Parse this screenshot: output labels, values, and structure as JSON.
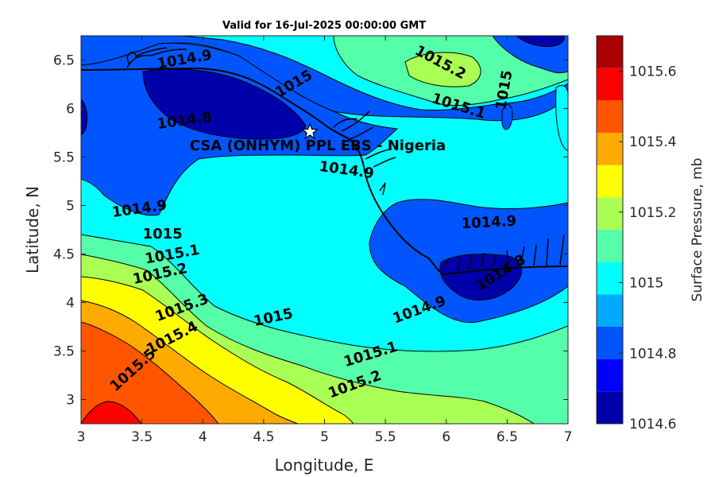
{
  "chart_data": {
    "type": "contour",
    "title": "Valid for 16-Jul-2025 00:00:00 GMT",
    "xlabel": "Longitude, E",
    "ylabel": "Latitude, N",
    "xlim": [
      3,
      7
    ],
    "ylim": [
      2.75,
      6.75
    ],
    "xticks": [
      "3",
      "3.5",
      "4",
      "4.5",
      "5",
      "5.5",
      "6",
      "6.5",
      "7"
    ],
    "yticks": [
      "3",
      "3.5",
      "4",
      "4.5",
      "5",
      "5.5",
      "6",
      "6.5"
    ],
    "colorbar": {
      "label": "Surface Pressure, mb",
      "range": [
        1014.6,
        1015.7
      ],
      "ticks": [
        "1014.6",
        "1014.8",
        "1015",
        "1015.2",
        "1015.4",
        "1015.6"
      ],
      "colors": [
        "#0000aa",
        "#0000ff",
        "#0055ff",
        "#00aaff",
        "#00ffff",
        "#55ffaa",
        "#aaff55",
        "#ffff00",
        "#ffaa00",
        "#ff5500",
        "#ff0000",
        "#aa0000"
      ]
    },
    "contour_labels": [
      {
        "text": "1014.9",
        "lon": 3.85,
        "lat": 6.5,
        "angle": 10
      },
      {
        "text": "1015",
        "lon": 4.75,
        "lat": 6.25,
        "angle": 30
      },
      {
        "text": "1015.2",
        "lon": 5.95,
        "lat": 6.47,
        "angle": -28
      },
      {
        "text": "1015.1",
        "lon": 6.1,
        "lat": 6.02,
        "angle": -17
      },
      {
        "text": "1015",
        "lon": 6.48,
        "lat": 6.19,
        "angle": 80
      },
      {
        "text": "1014.8",
        "lon": 3.85,
        "lat": 5.87,
        "angle": 8
      },
      {
        "text": "1014.9",
        "lon": 5.18,
        "lat": 5.36,
        "angle": -8
      },
      {
        "text": "1014.9",
        "lon": 3.48,
        "lat": 4.96,
        "angle": 8
      },
      {
        "text": "1015",
        "lon": 3.67,
        "lat": 4.7,
        "angle": 0
      },
      {
        "text": "1015.1",
        "lon": 3.75,
        "lat": 4.49,
        "angle": 10
      },
      {
        "text": "1015.2",
        "lon": 3.65,
        "lat": 4.29,
        "angle": 12
      },
      {
        "text": "1014.9",
        "lon": 6.35,
        "lat": 4.82,
        "angle": 3
      },
      {
        "text": "1014.8",
        "lon": 6.45,
        "lat": 4.3,
        "angle": 32
      },
      {
        "text": "1015.3",
        "lon": 3.83,
        "lat": 3.94,
        "angle": 20
      },
      {
        "text": "1015",
        "lon": 4.58,
        "lat": 3.84,
        "angle": 12
      },
      {
        "text": "1014.9",
        "lon": 5.78,
        "lat": 3.92,
        "angle": 20
      },
      {
        "text": "1015.4",
        "lon": 3.75,
        "lat": 3.63,
        "angle": 27
      },
      {
        "text": "1015.5",
        "lon": 3.43,
        "lat": 3.3,
        "angle": 42
      },
      {
        "text": "1015.1",
        "lon": 5.38,
        "lat": 3.46,
        "angle": 17
      },
      {
        "text": "1015.2",
        "lon": 5.25,
        "lat": 3.15,
        "angle": 20
      }
    ],
    "site": {
      "label": "CSA (ONHYM) PPL EBS - Nigeria",
      "lon": 4.88,
      "lat": 5.76,
      "marker": "white-star"
    }
  }
}
